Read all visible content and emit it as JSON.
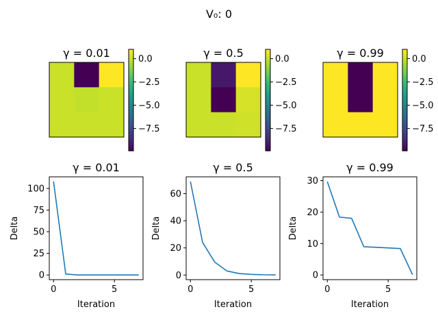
{
  "figure": {
    "suptitle": "V₀: 0"
  },
  "chart_data": [
    {
      "type": "heatmap",
      "title": "γ = 0.01",
      "grid": [
        [
          0.13,
          -9.9,
          1.0
        ],
        [
          0.13,
          0.0,
          0.13
        ],
        [
          0.13,
          0.13,
          0.13
        ]
      ],
      "colorbar": {
        "vmin": -9.9,
        "vmax": 1.0,
        "ticks": [
          0.0,
          -2.5,
          -5.0,
          -7.5
        ],
        "tick_labels": [
          "0.0",
          "−2.5",
          "−5.0",
          "−7.5"
        ]
      },
      "colormap": [
        "#440154",
        "#482878",
        "#3e4989",
        "#31688e",
        "#26828e",
        "#1f9e89",
        "#35b779",
        "#6ece58",
        "#b5de2b",
        "#fde725"
      ]
    },
    {
      "type": "heatmap",
      "title": "γ = 0.5",
      "grid": [
        [
          0.13,
          -9.2,
          1.0
        ],
        [
          0.13,
          -9.9,
          0.35
        ],
        [
          0.13,
          0.13,
          0.25
        ]
      ],
      "colorbar": {
        "vmin": -9.9,
        "vmax": 1.0,
        "ticks": [
          0.0,
          -2.5,
          -5.0,
          -7.5
        ],
        "tick_labels": [
          "0.0",
          "−2.5",
          "−5.0",
          "−7.5"
        ]
      },
      "colormap": [
        "#440154",
        "#482878",
        "#3e4989",
        "#31688e",
        "#26828e",
        "#1f9e89",
        "#35b779",
        "#6ece58",
        "#b5de2b",
        "#fde725"
      ]
    },
    {
      "type": "heatmap",
      "title": "γ = 0.99",
      "grid": [
        [
          1.0,
          -9.9,
          1.0
        ],
        [
          1.0,
          -9.9,
          1.0
        ],
        [
          1.0,
          1.0,
          1.0
        ]
      ],
      "colorbar": {
        "vmin": -9.9,
        "vmax": 1.0,
        "ticks": [
          0.0,
          -2.5,
          -5.0,
          -7.5
        ],
        "tick_labels": [
          "0.0",
          "−2.5",
          "−5.0",
          "−7.5"
        ]
      },
      "colormap": [
        "#440154",
        "#482878",
        "#3e4989",
        "#31688e",
        "#26828e",
        "#1f9e89",
        "#35b779",
        "#6ece58",
        "#b5de2b",
        "#fde725"
      ]
    },
    {
      "type": "line",
      "title": "γ = 0.01",
      "xlabel": "Iteration",
      "ylabel": "Delta",
      "x": [
        0,
        1,
        2,
        3,
        4,
        5,
        6,
        7
      ],
      "y": [
        108,
        1.1,
        0.01,
        0,
        0,
        0,
        0,
        0
      ],
      "xlim": [
        -0.35,
        7.35
      ],
      "ylim": [
        -5.4,
        113.4
      ],
      "xticks": [
        0,
        5
      ],
      "yticks": [
        0,
        25,
        50,
        75,
        100
      ],
      "color": "#1f77b4"
    },
    {
      "type": "line",
      "title": "γ = 0.5",
      "xlabel": "Iteration",
      "ylabel": "Delta",
      "x": [
        0,
        1,
        2,
        3,
        4,
        5,
        6,
        7
      ],
      "y": [
        69,
        24,
        9.5,
        3,
        1.1,
        0.5,
        0.2,
        0.1
      ],
      "xlim": [
        -0.35,
        7.35
      ],
      "ylim": [
        -3.4,
        72.4
      ],
      "xticks": [
        0,
        5
      ],
      "yticks": [
        0,
        20,
        40,
        60
      ],
      "color": "#1f77b4"
    },
    {
      "type": "line",
      "title": "γ = 0.99",
      "xlabel": "Iteration",
      "ylabel": "Delta",
      "x": [
        0,
        1,
        2,
        3,
        4,
        5,
        6,
        7
      ],
      "y": [
        29.7,
        18.4,
        18.0,
        9.0,
        8.8,
        8.6,
        8.4,
        0.1
      ],
      "xlim": [
        -0.35,
        7.35
      ],
      "ylim": [
        -1.48,
        31.2
      ],
      "xticks": [
        0,
        5
      ],
      "yticks": [
        0,
        10,
        20,
        30
      ],
      "color": "#1f77b4"
    }
  ]
}
